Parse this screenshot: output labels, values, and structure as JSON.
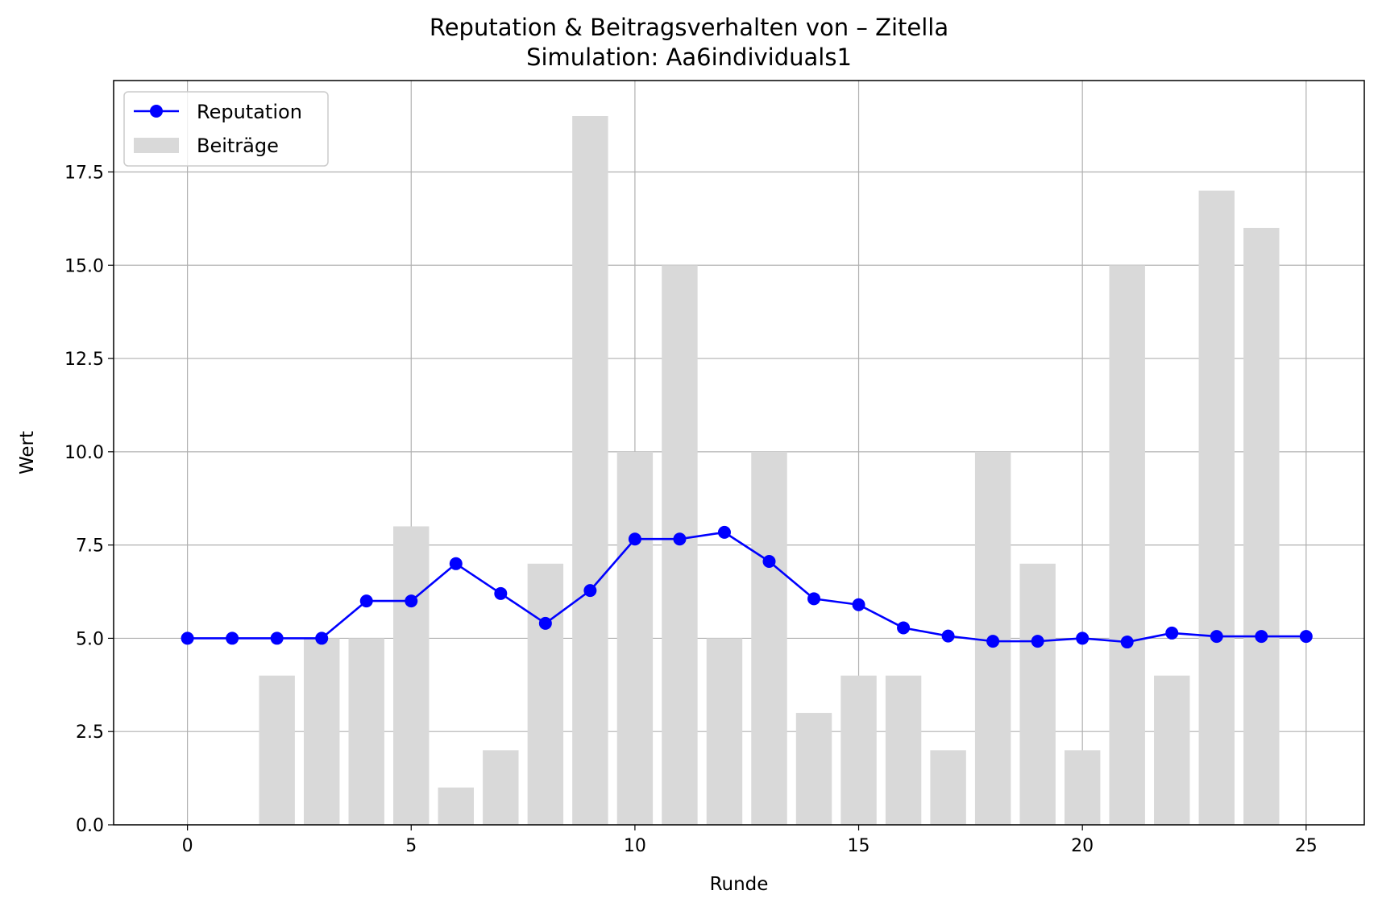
{
  "chart_data": {
    "type": "bar+line",
    "title": "Reputation & Beitragsverhalten von – Zitella",
    "subtitle": "Simulation: Aa6individuals1",
    "xlabel": "Runde",
    "ylabel": "Wert",
    "xlim": [
      -1.65,
      26.3
    ],
    "ylim": [
      0,
      19.95
    ],
    "x_ticks": [
      0,
      5,
      10,
      15,
      20,
      25
    ],
    "x_tick_labels": [
      "0",
      "5",
      "10",
      "15",
      "20",
      "25"
    ],
    "y_ticks": [
      0,
      2.5,
      5,
      7.5,
      10,
      12.5,
      15,
      17.5
    ],
    "y_tick_labels": [
      "0.0",
      "2.5",
      "5.0",
      "7.5",
      "10.0",
      "12.5",
      "15.0",
      "17.5"
    ],
    "grid": true,
    "legend_position": "upper left",
    "bars": {
      "name": "Beiträge",
      "color": "#d9d9d9",
      "x": [
        2,
        3,
        4,
        5,
        6,
        7,
        8,
        9,
        10,
        11,
        12,
        13,
        14,
        15,
        16,
        17,
        18,
        19,
        20,
        21,
        22,
        23,
        24
      ],
      "values": [
        4,
        5,
        5,
        8,
        1,
        2,
        7,
        19,
        10,
        15,
        5,
        10,
        3,
        4,
        4,
        2,
        10,
        7,
        2,
        15,
        4,
        17,
        16
      ]
    },
    "line": {
      "name": "Reputation",
      "color": "#0000ff",
      "marker": "circle",
      "x": [
        0,
        1,
        2,
        3,
        4,
        5,
        6,
        7,
        8,
        9,
        10,
        11,
        12,
        13,
        14,
        15,
        16,
        17,
        18,
        19,
        20,
        21,
        22,
        23,
        24,
        25
      ],
      "values": [
        5.0,
        5.0,
        5.0,
        5.0,
        6.0,
        6.0,
        7.0,
        6.2,
        5.4,
        6.28,
        7.66,
        7.66,
        7.84,
        7.06,
        6.06,
        5.9,
        5.28,
        5.06,
        4.92,
        4.92,
        5.0,
        4.9,
        5.14,
        5.05,
        5.05,
        5.05
      ]
    },
    "legend": [
      {
        "label": "Reputation",
        "kind": "line",
        "color": "#0000ff"
      },
      {
        "label": "Beiträge",
        "kind": "bar",
        "color": "#d9d9d9"
      }
    ]
  }
}
